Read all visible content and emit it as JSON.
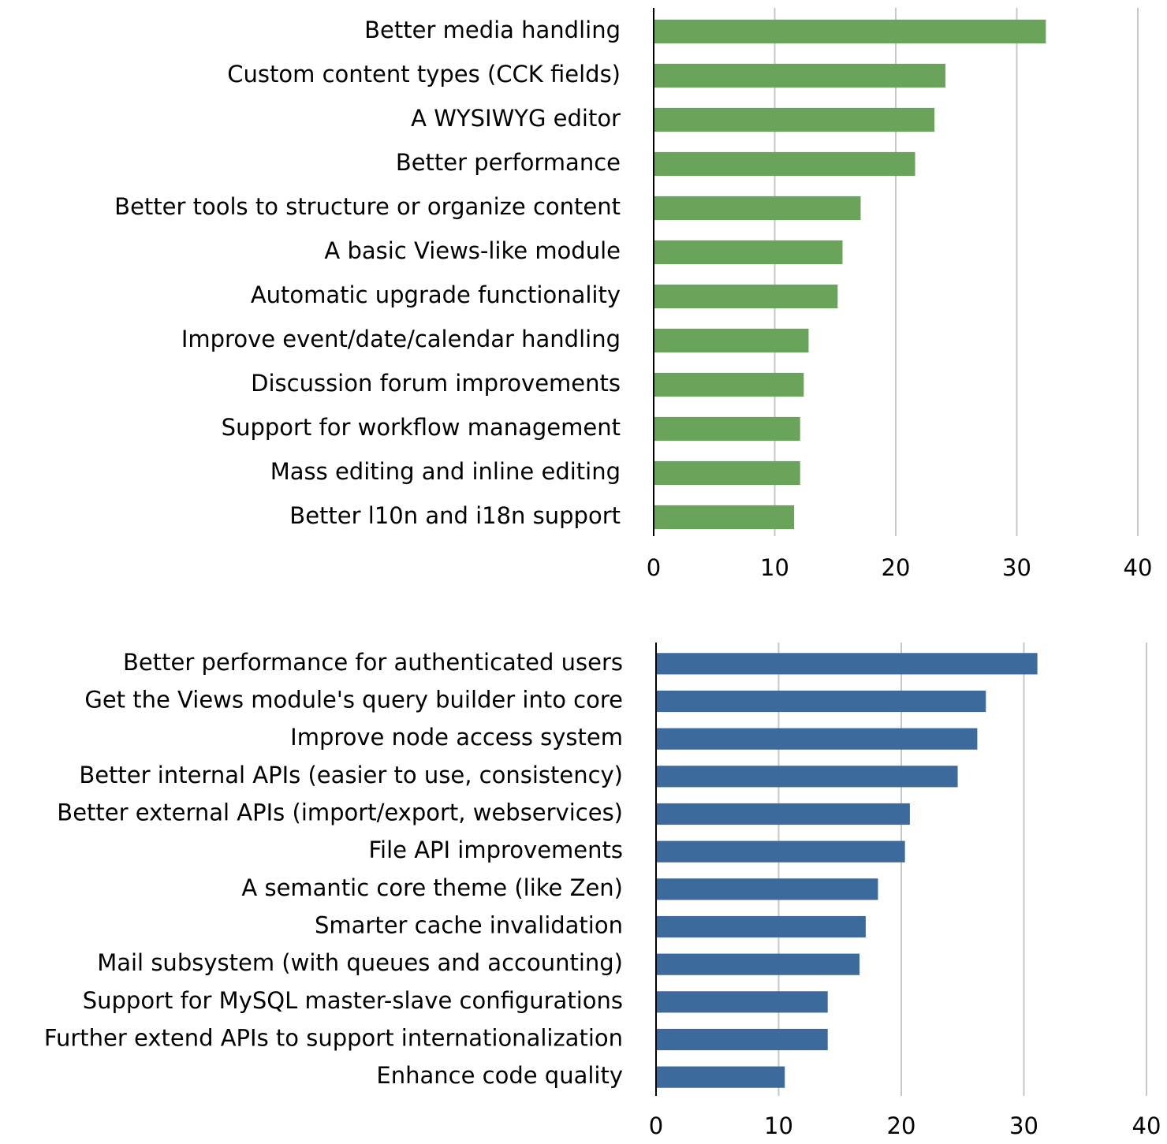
{
  "chart_data": [
    {
      "type": "barh",
      "categories": [
        "Better media handling",
        "Custom content types (CCK fields)",
        "A WYSIWYG editor",
        "Better performance",
        "Better tools to structure or organize content",
        "A basic Views-like module",
        "Automatic upgrade functionality",
        "Improve event/date/calendar handling",
        "Discussion forum improvements",
        "Support for workflow management",
        "Mass editing and inline editing",
        "Better l10n and i18n support"
      ],
      "values": [
        32.4,
        24.1,
        23.2,
        21.6,
        17.1,
        15.6,
        15.2,
        12.8,
        12.4,
        12.1,
        12.1,
        11.6
      ],
      "color": "#6aa35a",
      "xlim": [
        0,
        40
      ],
      "xticks": [
        0,
        10,
        20,
        30,
        40
      ],
      "grid": true
    },
    {
      "type": "barh",
      "categories": [
        "Better performance for authenticated users",
        "Get the Views module's query builder into core",
        "Improve node access system",
        "Better internal APIs (easier to use, consistency)",
        "Better external APIs (import/export, webservices)",
        "File API improvements",
        "A semantic core theme (like Zen)",
        "Smarter cache invalidation",
        "Mail subsystem (with queues and accounting)",
        "Support for MySQL master-slave configurations",
        "Further extend APIs to support internationalization",
        "Enhance code quality"
      ],
      "values": [
        31.1,
        26.9,
        26.2,
        24.6,
        20.7,
        20.3,
        18.1,
        17.1,
        16.6,
        14.0,
        14.0,
        10.5
      ],
      "color": "#3c6a9c",
      "xlim": [
        0,
        40
      ],
      "xticks": [
        0,
        10,
        20,
        30,
        40
      ],
      "grid": true
    }
  ]
}
